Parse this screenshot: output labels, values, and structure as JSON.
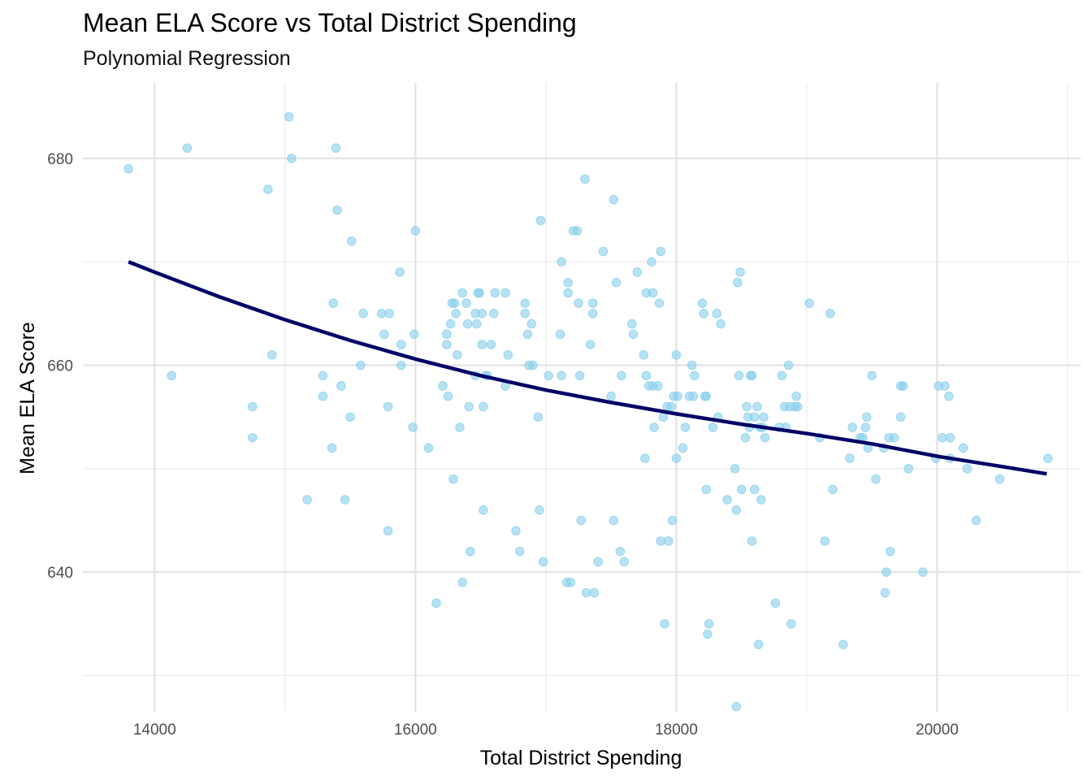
{
  "chart_data": {
    "type": "scatter",
    "title": "Mean ELA Score vs Total District Spending",
    "subtitle": "Polynomial Regression",
    "xlabel": "Total District Spending",
    "ylabel": "Mean ELA Score",
    "xlim": [
      13450,
      21100
    ],
    "ylim": [
      626.5,
      687.3
    ],
    "x_ticks": [
      14000,
      16000,
      18000,
      20000
    ],
    "y_ticks": [
      640,
      660,
      680
    ],
    "grid": true,
    "point_color": "#87CEEB",
    "line_color": "#000066",
    "points": [
      [
        13800,
        679
      ],
      [
        14250,
        681
      ],
      [
        14130,
        659
      ],
      [
        14750,
        653
      ],
      [
        14750,
        656
      ],
      [
        14870,
        677
      ],
      [
        14900,
        661
      ],
      [
        15030,
        684
      ],
      [
        15050,
        680
      ],
      [
        15170,
        647
      ],
      [
        15290,
        659
      ],
      [
        15290,
        657
      ],
      [
        15360,
        652
      ],
      [
        15370,
        666
      ],
      [
        15390,
        681
      ],
      [
        15400,
        675
      ],
      [
        15430,
        658
      ],
      [
        15460,
        647
      ],
      [
        15500,
        655
      ],
      [
        15510,
        672
      ],
      [
        15580,
        660
      ],
      [
        15600,
        665
      ],
      [
        15740,
        665
      ],
      [
        15760,
        663
      ],
      [
        15790,
        656
      ],
      [
        15800,
        665
      ],
      [
        15790,
        644
      ],
      [
        15880,
        669
      ],
      [
        15890,
        660
      ],
      [
        15890,
        662
      ],
      [
        15980,
        654
      ],
      [
        15990,
        663
      ],
      [
        16000,
        673
      ],
      [
        16100,
        652
      ],
      [
        16160,
        637
      ],
      [
        16210,
        658
      ],
      [
        16240,
        662
      ],
      [
        16240,
        663
      ],
      [
        16250,
        657
      ],
      [
        16270,
        664
      ],
      [
        16280,
        666
      ],
      [
        16290,
        649
      ],
      [
        16300,
        666
      ],
      [
        16310,
        665
      ],
      [
        16320,
        661
      ],
      [
        16340,
        654
      ],
      [
        16360,
        639
      ],
      [
        16360,
        667
      ],
      [
        16390,
        666
      ],
      [
        16400,
        664
      ],
      [
        16410,
        656
      ],
      [
        16420,
        642
      ],
      [
        16460,
        659
      ],
      [
        16460,
        665
      ],
      [
        16470,
        664
      ],
      [
        16480,
        667
      ],
      [
        16490,
        667
      ],
      [
        16510,
        665
      ],
      [
        16510,
        662
      ],
      [
        16520,
        656
      ],
      [
        16520,
        646
      ],
      [
        16540,
        659
      ],
      [
        16580,
        662
      ],
      [
        16600,
        665
      ],
      [
        16610,
        667
      ],
      [
        16690,
        667
      ],
      [
        16690,
        658
      ],
      [
        16710,
        661
      ],
      [
        16770,
        644
      ],
      [
        16800,
        642
      ],
      [
        16840,
        666
      ],
      [
        16840,
        665
      ],
      [
        16860,
        663
      ],
      [
        16870,
        660
      ],
      [
        16890,
        664
      ],
      [
        16900,
        660
      ],
      [
        16940,
        655
      ],
      [
        16950,
        646
      ],
      [
        16960,
        674
      ],
      [
        16980,
        641
      ],
      [
        17020,
        659
      ],
      [
        17110,
        663
      ],
      [
        17120,
        670
      ],
      [
        17120,
        659
      ],
      [
        17160,
        639
      ],
      [
        17170,
        668
      ],
      [
        17170,
        667
      ],
      [
        17190,
        639
      ],
      [
        17210,
        673
      ],
      [
        17240,
        673
      ],
      [
        17250,
        666
      ],
      [
        17260,
        659
      ],
      [
        17270,
        645
      ],
      [
        17300,
        678
      ],
      [
        17310,
        638
      ],
      [
        17340,
        662
      ],
      [
        17360,
        666
      ],
      [
        17360,
        665
      ],
      [
        17370,
        638
      ],
      [
        17400,
        641
      ],
      [
        17440,
        671
      ],
      [
        17500,
        657
      ],
      [
        17520,
        676
      ],
      [
        17520,
        645
      ],
      [
        17540,
        668
      ],
      [
        17570,
        642
      ],
      [
        17580,
        659
      ],
      [
        17600,
        641
      ],
      [
        17660,
        664
      ],
      [
        17670,
        663
      ],
      [
        17700,
        669
      ],
      [
        17750,
        661
      ],
      [
        17760,
        651
      ],
      [
        17770,
        667
      ],
      [
        17770,
        659
      ],
      [
        17790,
        658
      ],
      [
        17810,
        670
      ],
      [
        17820,
        667
      ],
      [
        17820,
        658
      ],
      [
        17830,
        654
      ],
      [
        17860,
        658
      ],
      [
        17870,
        666
      ],
      [
        17880,
        643
      ],
      [
        17880,
        671
      ],
      [
        17900,
        655
      ],
      [
        17910,
        635
      ],
      [
        17930,
        656
      ],
      [
        17940,
        643
      ],
      [
        17960,
        656
      ],
      [
        17970,
        645
      ],
      [
        17980,
        657
      ],
      [
        18000,
        651
      ],
      [
        18000,
        661
      ],
      [
        18010,
        657
      ],
      [
        18050,
        652
      ],
      [
        18070,
        654
      ],
      [
        18100,
        657
      ],
      [
        18120,
        660
      ],
      [
        18130,
        657
      ],
      [
        18140,
        659
      ],
      [
        18200,
        666
      ],
      [
        18210,
        665
      ],
      [
        18220,
        657
      ],
      [
        18230,
        657
      ],
      [
        18230,
        648
      ],
      [
        18240,
        634
      ],
      [
        18250,
        635
      ],
      [
        18280,
        654
      ],
      [
        18310,
        665
      ],
      [
        18320,
        655
      ],
      [
        18340,
        664
      ],
      [
        18390,
        647
      ],
      [
        18450,
        650
      ],
      [
        18460,
        646
      ],
      [
        18470,
        668
      ],
      [
        18480,
        659
      ],
      [
        18490,
        669
      ],
      [
        18500,
        648
      ],
      [
        18530,
        653
      ],
      [
        18540,
        656
      ],
      [
        18550,
        655
      ],
      [
        18560,
        654
      ],
      [
        18570,
        659
      ],
      [
        18580,
        659
      ],
      [
        18580,
        643
      ],
      [
        18600,
        655
      ],
      [
        18600,
        648
      ],
      [
        18620,
        656
      ],
      [
        18630,
        633
      ],
      [
        18640,
        654
      ],
      [
        18650,
        647
      ],
      [
        18660,
        654
      ],
      [
        18670,
        655
      ],
      [
        18680,
        653
      ],
      [
        18760,
        637
      ],
      [
        18790,
        654
      ],
      [
        18810,
        659
      ],
      [
        18830,
        656
      ],
      [
        18840,
        654
      ],
      [
        18860,
        660
      ],
      [
        18870,
        656
      ],
      [
        18880,
        635
      ],
      [
        18910,
        656
      ],
      [
        18920,
        657
      ],
      [
        18930,
        656
      ],
      [
        19020,
        666
      ],
      [
        19100,
        653
      ],
      [
        19140,
        643
      ],
      [
        19180,
        665
      ],
      [
        19200,
        648
      ],
      [
        19280,
        633
      ],
      [
        19330,
        651
      ],
      [
        19350,
        654
      ],
      [
        19410,
        653
      ],
      [
        19430,
        653
      ],
      [
        19450,
        654
      ],
      [
        19460,
        655
      ],
      [
        19470,
        652
      ],
      [
        19500,
        659
      ],
      [
        19530,
        649
      ],
      [
        19590,
        652
      ],
      [
        19600,
        638
      ],
      [
        19610,
        640
      ],
      [
        19630,
        653
      ],
      [
        19640,
        642
      ],
      [
        19670,
        653
      ],
      [
        19720,
        658
      ],
      [
        19720,
        655
      ],
      [
        19740,
        658
      ],
      [
        19780,
        650
      ],
      [
        19890,
        640
      ],
      [
        19990,
        651
      ],
      [
        20010,
        658
      ],
      [
        20040,
        653
      ],
      [
        20060,
        658
      ],
      [
        20090,
        657
      ],
      [
        20100,
        651
      ],
      [
        20100,
        653
      ],
      [
        20200,
        652
      ],
      [
        20230,
        650
      ],
      [
        20480,
        649
      ],
      [
        20300,
        645
      ],
      [
        20850,
        651
      ],
      [
        18460,
        627
      ],
      [
        16550,
        659
      ]
    ],
    "fit_curve": [
      [
        13800,
        670.0
      ],
      [
        14000,
        669.0
      ],
      [
        14500,
        666.6
      ],
      [
        15000,
        664.4
      ],
      [
        15500,
        662.4
      ],
      [
        16000,
        660.6
      ],
      [
        16500,
        659.0
      ],
      [
        17000,
        657.6
      ],
      [
        17500,
        656.4
      ],
      [
        18000,
        655.3
      ],
      [
        18500,
        654.3
      ],
      [
        19000,
        653.4
      ],
      [
        19500,
        652.4
      ],
      [
        20000,
        651.2
      ],
      [
        20500,
        650.2
      ],
      [
        20840,
        649.5
      ]
    ]
  }
}
